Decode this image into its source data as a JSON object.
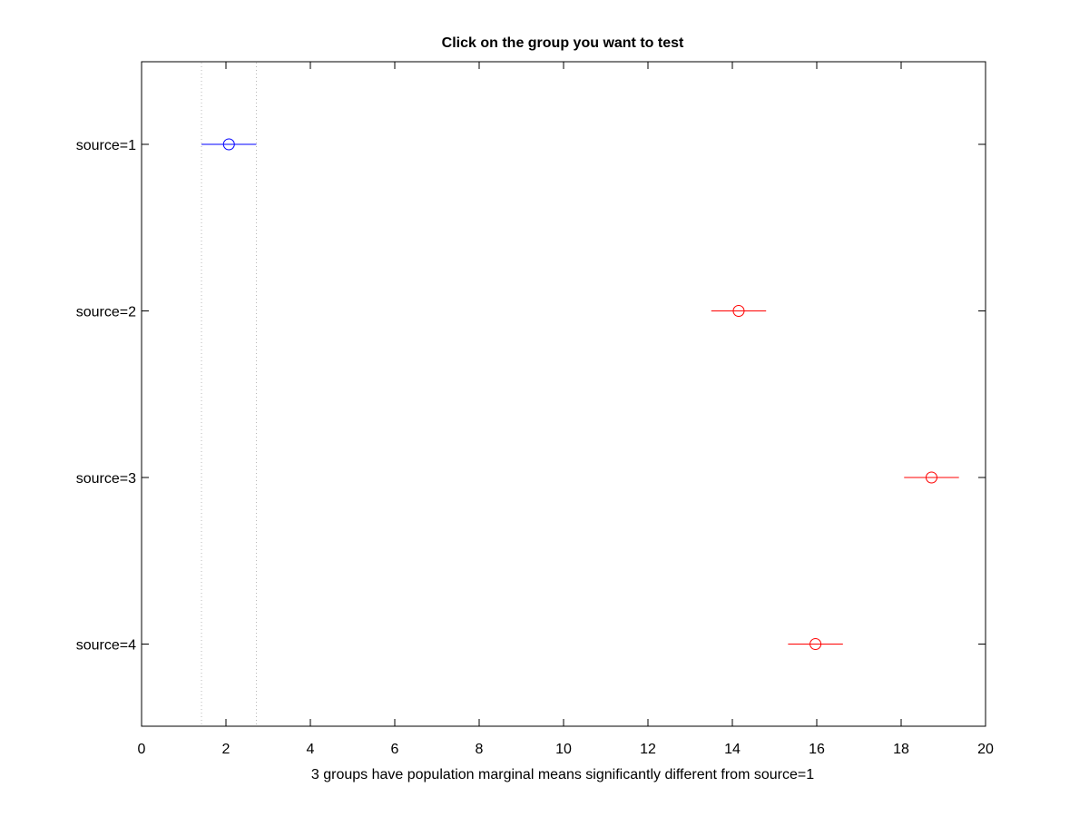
{
  "chart_data": {
    "type": "scatter",
    "title": "Click on the group you want to test",
    "xlabel": "3 groups have population marginal means significantly different from source=1",
    "ylabel": "",
    "xlim": [
      0,
      20
    ],
    "xticks": [
      "0",
      "2",
      "4",
      "6",
      "8",
      "10",
      "12",
      "14",
      "16",
      "18",
      "20"
    ],
    "grid": false,
    "reference_lines": [
      1.42,
      2.72
    ],
    "groups": [
      {
        "label": "source=1",
        "mean": 2.07,
        "lower": 1.42,
        "upper": 2.72,
        "color": "#0000ff"
      },
      {
        "label": "source=2",
        "mean": 14.15,
        "lower": 13.5,
        "upper": 14.8,
        "color": "#ff0000"
      },
      {
        "label": "source=3",
        "mean": 18.72,
        "lower": 18.07,
        "upper": 19.37,
        "color": "#ff0000"
      },
      {
        "label": "source=4",
        "mean": 15.97,
        "lower": 15.32,
        "upper": 16.62,
        "color": "#ff0000"
      }
    ]
  }
}
